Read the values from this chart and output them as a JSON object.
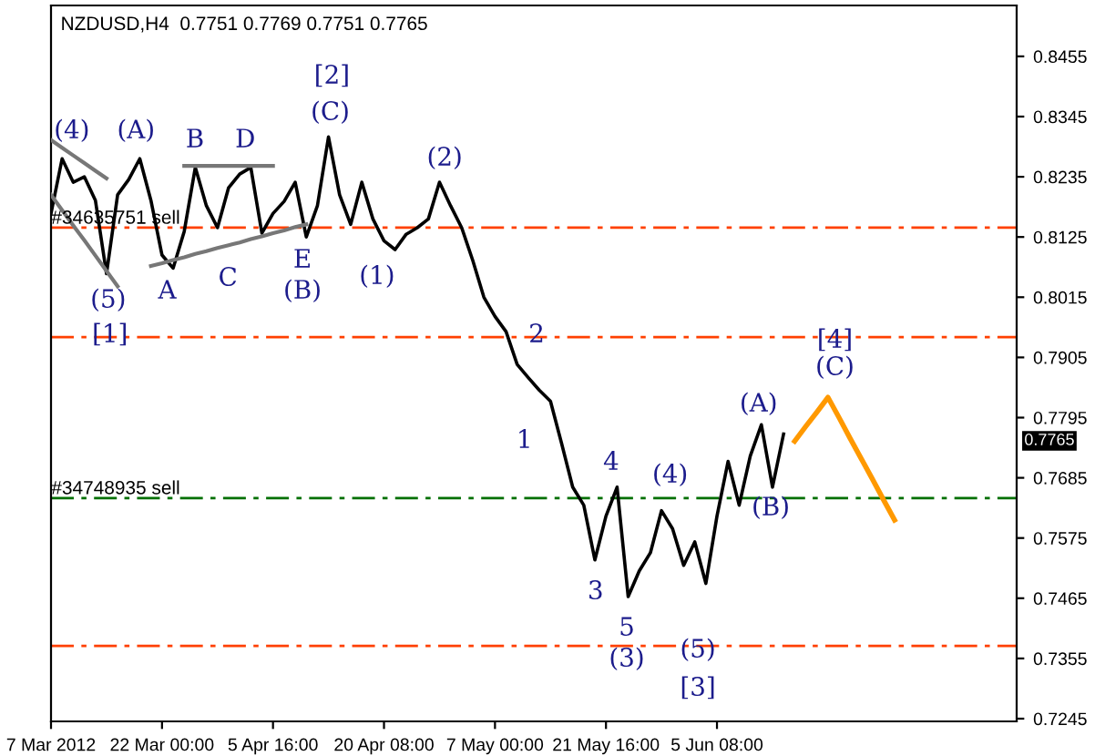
{
  "chart_data": {
    "type": "line",
    "title": "NZDUSD,H4  0.7751 0.7769 0.7751 0.7765",
    "categories": [
      "7 Mar 2012",
      null,
      null,
      null,
      null,
      null,
      null,
      null,
      null,
      null,
      "22 Mar 00:00",
      null,
      null,
      null,
      null,
      null,
      null,
      null,
      null,
      null,
      "5 Apr 16:00",
      null,
      null,
      null,
      null,
      null,
      null,
      null,
      null,
      null,
      "20 Apr 08:00",
      null,
      null,
      null,
      null,
      null,
      null,
      null,
      null,
      null,
      "7 May 00:00",
      null,
      null,
      null,
      null,
      null,
      null,
      null,
      null,
      null,
      "21 May 16:00",
      null,
      null,
      null,
      null,
      null,
      null,
      null,
      null,
      null,
      "5 Jun 08:00",
      null,
      null,
      null,
      null,
      null,
      null,
      null,
      null,
      null,
      null,
      null,
      null,
      null,
      null,
      null,
      null,
      null,
      null,
      null,
      null,
      null,
      null,
      null,
      null,
      null,
      null,
      null
    ],
    "ylim": [
      0.724,
      0.8548
    ],
    "yticks": [
      0.8455,
      0.8345,
      0.8235,
      0.8125,
      0.8015,
      0.7905,
      0.7795,
      0.7685,
      0.7575,
      0.7465,
      0.7355,
      0.7245
    ],
    "grid": false,
    "legend": false,
    "marker": "none",
    "series": [
      {
        "color": "#000000",
        "values": [
          0.8168,
          0.8268,
          0.8225,
          0.8235,
          0.8192,
          0.8058,
          0.8202,
          0.823,
          0.8268,
          0.8192,
          0.8092,
          0.8068,
          0.8135,
          0.8252,
          0.8182,
          0.8142,
          0.8215,
          0.824,
          0.8252,
          0.8132,
          0.8168,
          0.819,
          0.8225,
          0.8125,
          0.8182,
          0.8308,
          0.8202,
          0.8148,
          0.8225,
          0.8158,
          0.8118,
          0.8102,
          0.813,
          0.8142,
          0.8158,
          0.8225,
          0.8182,
          0.8142,
          0.8082,
          0.8015,
          0.798,
          0.7952,
          0.7892,
          0.7868,
          0.7845,
          0.7825,
          0.7748,
          0.7668,
          0.7635,
          0.7535,
          0.7615,
          0.7668,
          0.7468,
          0.7515,
          0.7548,
          0.7625,
          0.7592,
          0.7525,
          0.7568,
          0.7492,
          0.7615,
          0.7715,
          0.7635,
          0.7725,
          0.7782,
          0.7668,
          0.7765,
          null,
          null,
          null,
          null,
          null,
          null,
          null,
          null,
          null,
          null,
          null,
          null,
          null,
          null,
          null,
          null,
          null,
          null,
          null,
          null,
          null
        ]
      },
      {
        "color": "#ff9900",
        "values": [
          null,
          null,
          null,
          null,
          null,
          null,
          null,
          null,
          null,
          null,
          null,
          null,
          null,
          null,
          null,
          null,
          null,
          null,
          null,
          null,
          null,
          null,
          null,
          null,
          null,
          null,
          null,
          null,
          null,
          null,
          null,
          null,
          null,
          null,
          null,
          null,
          null,
          null,
          null,
          null,
          null,
          null,
          null,
          null,
          null,
          null,
          null,
          null,
          null,
          null,
          null,
          null,
          null,
          null,
          null,
          null,
          null,
          null,
          null,
          null,
          null,
          null,
          null,
          null,
          null,
          null,
          null,
          0.7752,
          0.7779,
          0.7805,
          0.7832,
          0.7795,
          0.7757,
          0.772,
          0.7683,
          0.7645,
          0.7608,
          null,
          null,
          null,
          null,
          null,
          null,
          null,
          null,
          null,
          null,
          null
        ]
      },
      {
        "color": "#777777",
        "values": [
          null,
          null,
          null,
          null,
          null,
          null,
          null,
          null,
          null,
          0.8072,
          0.8077,
          0.8083,
          0.8088,
          0.8094,
          0.8099,
          0.8105,
          0.811,
          0.8115,
          0.8121,
          0.8126,
          0.8132,
          0.8137,
          0.8143,
          0.8148,
          null,
          null,
          null,
          null,
          null,
          null,
          null,
          null,
          null,
          null,
          null,
          null,
          null,
          null,
          null,
          null,
          null,
          null,
          null,
          null,
          null,
          null,
          null,
          null,
          null,
          null,
          null,
          null,
          null,
          null,
          null,
          null,
          null,
          null,
          null,
          null,
          null,
          null,
          null,
          null,
          null,
          null,
          null,
          null,
          null,
          null,
          null,
          null,
          null,
          null,
          null,
          null,
          null,
          null,
          null,
          null,
          null,
          null,
          null,
          null,
          null,
          null,
          null,
          null
        ]
      },
      {
        "color": "#777777",
        "values": [
          null,
          null,
          null,
          null,
          null,
          null,
          null,
          null,
          null,
          null,
          null,
          null,
          0.8255,
          0.8255,
          0.8255,
          0.8255,
          0.8255,
          0.8255,
          0.8255,
          0.8255,
          0.8255,
          null,
          null,
          null,
          null,
          null,
          null,
          null,
          null,
          null,
          null,
          null,
          null,
          null,
          null,
          null,
          null,
          null,
          null,
          null,
          null,
          null,
          null,
          null,
          null,
          null,
          null,
          null,
          null,
          null,
          null,
          null,
          null,
          null,
          null,
          null,
          null,
          null,
          null,
          null,
          null,
          null,
          null,
          null,
          null,
          null,
          null,
          null,
          null,
          null,
          null,
          null,
          null,
          null,
          null,
          null,
          null,
          null,
          null,
          null,
          null,
          null,
          null,
          null,
          null,
          null,
          null,
          null
        ]
      },
      {
        "color": "#777777",
        "values": [
          0.8302,
          0.8288,
          0.8274,
          0.826,
          0.8246,
          0.8232,
          null,
          null,
          null,
          null,
          null,
          null,
          null,
          null,
          null,
          null,
          null,
          null,
          null,
          null,
          null,
          null,
          null,
          null,
          null,
          null,
          null,
          null,
          null,
          null,
          null,
          null,
          null,
          null,
          null,
          null,
          null,
          null,
          null,
          null,
          null,
          null,
          null,
          null,
          null,
          null,
          null,
          null,
          null,
          null,
          null,
          null,
          null,
          null,
          null,
          null,
          null,
          null,
          null,
          null,
          null,
          null,
          null,
          null,
          null,
          null,
          null,
          null,
          null,
          null,
          null,
          null,
          null,
          null,
          null,
          null,
          null,
          null,
          null,
          null,
          null,
          null,
          null,
          null,
          null,
          null,
          null,
          null
        ]
      },
      {
        "color": "#777777",
        "values": [
          0.8202,
          0.8174,
          0.8146,
          0.8119,
          0.8091,
          0.8063,
          0.8035,
          null,
          null,
          null,
          null,
          null,
          null,
          null,
          null,
          null,
          null,
          null,
          null,
          null,
          null,
          null,
          null,
          null,
          null,
          null,
          null,
          null,
          null,
          null,
          null,
          null,
          null,
          null,
          null,
          null,
          null,
          null,
          null,
          null,
          null,
          null,
          null,
          null,
          null,
          null,
          null,
          null,
          null,
          null,
          null,
          null,
          null,
          null,
          null,
          null,
          null,
          null,
          null,
          null,
          null,
          null,
          null,
          null,
          null,
          null,
          null,
          null,
          null,
          null,
          null,
          null,
          null,
          null,
          null,
          null,
          null,
          null,
          null,
          null,
          null,
          null,
          null,
          null,
          null,
          null,
          null,
          null
        ]
      }
    ],
    "ref_lines": [
      {
        "axis": "y",
        "value": 0.8142,
        "label": "#34635751 sell",
        "color": "#ff4000",
        "line_style": "dashdot"
      },
      {
        "axis": "y",
        "value": 0.7942,
        "color": "#ff4000",
        "line_style": "dashdot"
      },
      {
        "axis": "y",
        "value": 0.7648,
        "label": "#34748935 sell",
        "color": "#007000",
        "line_style": "dashdot"
      },
      {
        "axis": "y",
        "value": 0.7378,
        "color": "#ff4000",
        "line_style": "dashdot"
      }
    ],
    "annotations": [
      "(4)",
      "(A)",
      "B",
      "D",
      "[2]",
      "(C)",
      "(2)",
      "(5)",
      "A",
      "C",
      "E",
      "(B)",
      "(1)",
      "[1]",
      "2",
      "1",
      "4",
      "(4)",
      "3",
      "5",
      "(3)",
      "(5)",
      "[3]",
      "(A)",
      "(B)",
      "[4]",
      "(C)",
      "0.7765"
    ]
  }
}
